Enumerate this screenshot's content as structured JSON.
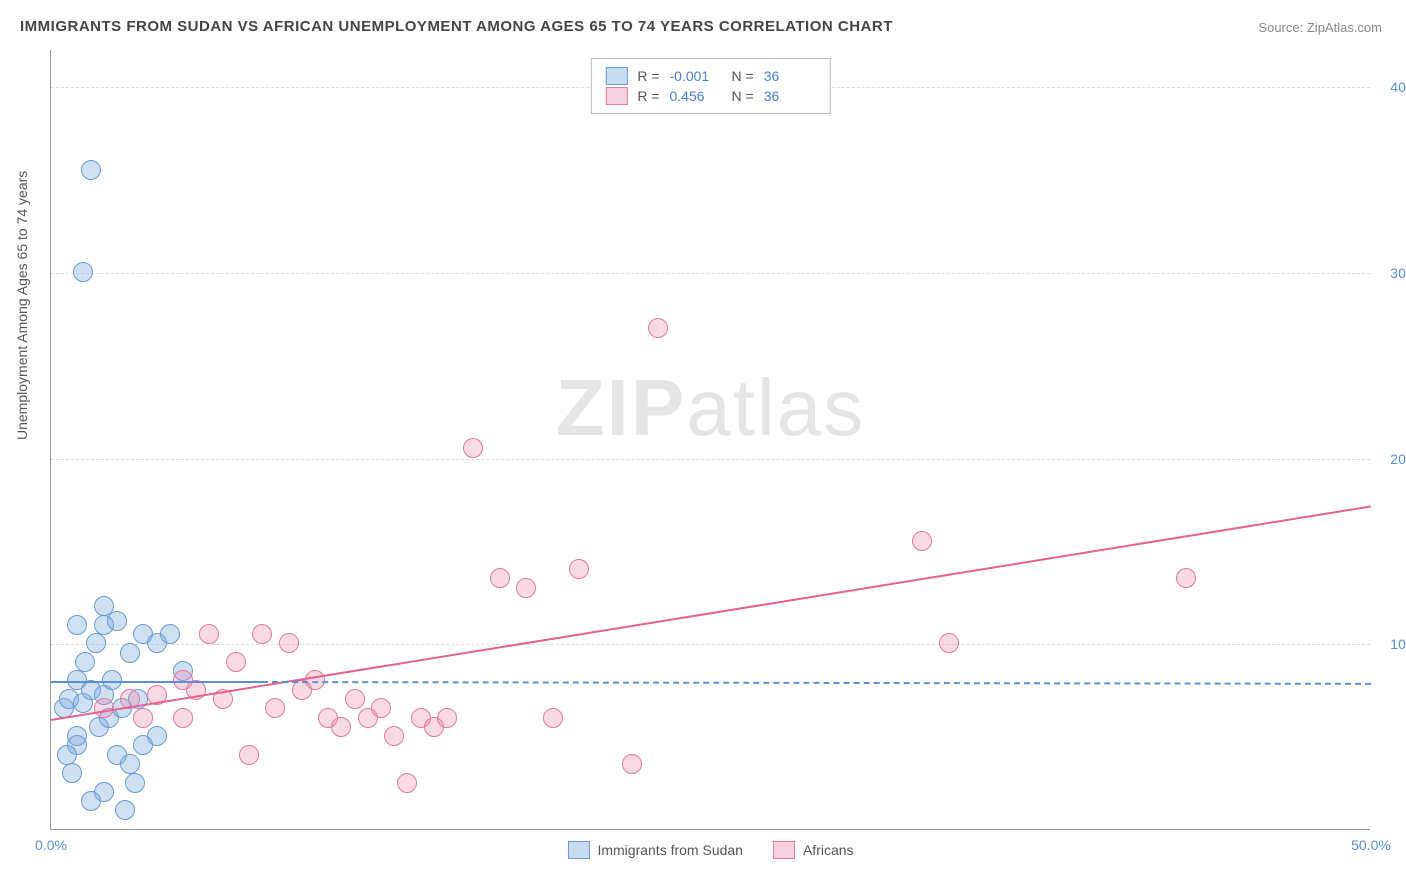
{
  "title": "IMMIGRANTS FROM SUDAN VS AFRICAN UNEMPLOYMENT AMONG AGES 65 TO 74 YEARS CORRELATION CHART",
  "source_label": "Source:",
  "source_value": "ZipAtlas.com",
  "ylabel": "Unemployment Among Ages 65 to 74 years",
  "watermark_bold": "ZIP",
  "watermark_light": "atlas",
  "chart": {
    "type": "scatter",
    "background_color": "#ffffff",
    "grid_color": "#dddddd",
    "axis_color": "#999999",
    "xlim": [
      0,
      50
    ],
    "ylim": [
      0,
      42
    ],
    "xticks": [
      0,
      50
    ],
    "xtick_labels": [
      "0.0%",
      "50.0%"
    ],
    "yticks": [
      10,
      20,
      30,
      40
    ],
    "ytick_labels": [
      "10.0%",
      "20.0%",
      "30.0%",
      "40.0%"
    ],
    "marker_radius": 10,
    "series": [
      {
        "name": "Immigrants from Sudan",
        "color_fill": "rgba(120,165,220,0.35)",
        "color_stroke": "#6a9ad4",
        "R": "-0.001",
        "N": "36",
        "trend": {
          "x1": 0,
          "y1": 8.0,
          "x2": 8,
          "y2": 8.0,
          "style": "solid"
        },
        "trend_extend": {
          "x1": 8,
          "y1": 8.0,
          "x2": 50,
          "y2": 7.9,
          "style": "dashed"
        },
        "points": [
          [
            0.5,
            6.5
          ],
          [
            0.7,
            7.0
          ],
          [
            1.0,
            5.0
          ],
          [
            1.2,
            6.8
          ],
          [
            1.5,
            7.5
          ],
          [
            1.0,
            8.0
          ],
          [
            2.0,
            7.2
          ],
          [
            1.8,
            5.5
          ],
          [
            2.2,
            6.0
          ],
          [
            2.5,
            4.0
          ],
          [
            3.0,
            3.5
          ],
          [
            3.2,
            2.5
          ],
          [
            2.8,
            1.0
          ],
          [
            1.5,
            35.5
          ],
          [
            1.2,
            30.0
          ],
          [
            2.0,
            11.0
          ],
          [
            2.5,
            11.2
          ],
          [
            3.5,
            10.5
          ],
          [
            3.0,
            9.5
          ],
          [
            4.0,
            10.0
          ],
          [
            1.0,
            4.5
          ],
          [
            0.8,
            3.0
          ],
          [
            2.0,
            2.0
          ],
          [
            3.5,
            4.5
          ],
          [
            4.5,
            10.5
          ],
          [
            5.0,
            8.5
          ],
          [
            1.3,
            9.0
          ],
          [
            1.7,
            10.0
          ],
          [
            0.6,
            4.0
          ],
          [
            2.3,
            8.0
          ],
          [
            2.7,
            6.5
          ],
          [
            3.3,
            7.0
          ],
          [
            4.0,
            5.0
          ],
          [
            1.0,
            11.0
          ],
          [
            2.0,
            12.0
          ],
          [
            1.5,
            1.5
          ]
        ]
      },
      {
        "name": "Africans",
        "color_fill": "rgba(235,130,165,0.3)",
        "color_stroke": "#e37aa0",
        "R": "0.456",
        "N": "36",
        "trend": {
          "x1": 0,
          "y1": 6.0,
          "x2": 50,
          "y2": 17.5,
          "style": "solid"
        },
        "points": [
          [
            2.0,
            6.5
          ],
          [
            3.0,
            7.0
          ],
          [
            4.0,
            7.2
          ],
          [
            5.0,
            6.0
          ],
          [
            5.5,
            7.5
          ],
          [
            6.0,
            10.5
          ],
          [
            7.0,
            9.0
          ],
          [
            7.5,
            4.0
          ],
          [
            8.0,
            10.5
          ],
          [
            9.0,
            10.0
          ],
          [
            10.0,
            8.0
          ],
          [
            11.0,
            5.5
          ],
          [
            12.0,
            6.0
          ],
          [
            13.0,
            5.0
          ],
          [
            13.5,
            2.5
          ],
          [
            14.0,
            6.0
          ],
          [
            14.5,
            5.5
          ],
          [
            15.0,
            6.0
          ],
          [
            16.0,
            20.5
          ],
          [
            17.0,
            13.5
          ],
          [
            18.0,
            13.0
          ],
          [
            19.0,
            6.0
          ],
          [
            20.0,
            14.0
          ],
          [
            22.0,
            3.5
          ],
          [
            23.0,
            27.0
          ],
          [
            33.0,
            15.5
          ],
          [
            34.0,
            10.0
          ],
          [
            43.0,
            13.5
          ],
          [
            5.0,
            8.0
          ],
          [
            6.5,
            7.0
          ],
          [
            8.5,
            6.5
          ],
          [
            9.5,
            7.5
          ],
          [
            10.5,
            6.0
          ],
          [
            11.5,
            7.0
          ],
          [
            12.5,
            6.5
          ],
          [
            3.5,
            6.0
          ]
        ]
      }
    ]
  },
  "legend_top": {
    "r_label": "R =",
    "n_label": "N ="
  },
  "legend_bottom": {
    "items": [
      "Immigrants from Sudan",
      "Africans"
    ]
  }
}
